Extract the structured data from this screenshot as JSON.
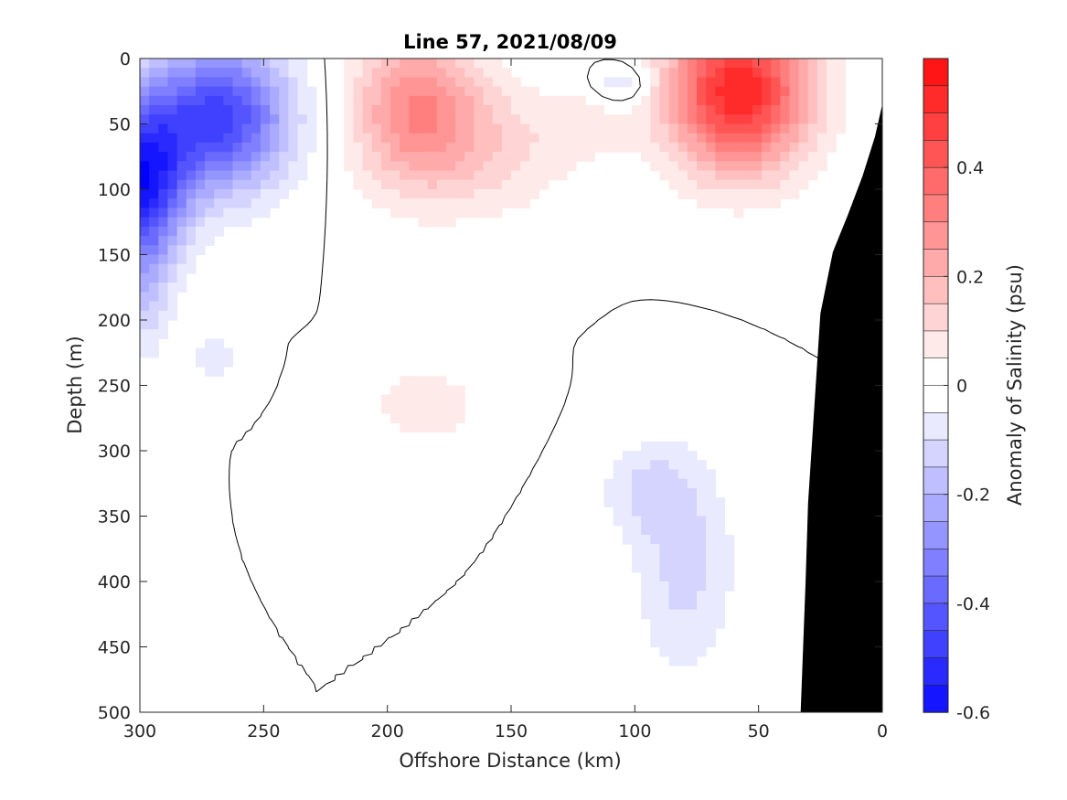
{
  "chart_data": {
    "type": "heatmap",
    "title": "Line 57, 2021/08/09",
    "xlabel": "Offshore Distance (km)",
    "ylabel": "Depth (m)",
    "colorbar_label": "Anomaly of Salinity (psu)",
    "xlim": [
      300,
      0
    ],
    "ylim": [
      0,
      500
    ],
    "x_reversed": true,
    "y_reversed": true,
    "x_ticks": [
      "300",
      "250",
      "200",
      "150",
      "100",
      "50",
      "0"
    ],
    "y_ticks": [
      "0",
      "50",
      "100",
      "150",
      "200",
      "250",
      "300",
      "350",
      "400",
      "450",
      "500"
    ],
    "colorbar_range": [
      -0.6,
      0.6
    ],
    "colorbar_ticks": [
      "0.4",
      "0.2",
      "0",
      "-0.2",
      "-0.4",
      "-0.6"
    ],
    "colorbar_tick_values": [
      0.4,
      0.2,
      0,
      -0.2,
      -0.4,
      -0.6
    ],
    "contour_step": 0.05,
    "colors": {
      "positive_max": "#ff0000",
      "negative_max": "#0000ff",
      "zero": "#ffffff",
      "bathymetry": "#000000"
    },
    "features": [
      {
        "sign": -1,
        "amp": 0.48,
        "x": 268,
        "y": 45,
        "sx": 28,
        "sy": 55
      },
      {
        "sign": -1,
        "amp": 0.55,
        "x": 300,
        "y": 95,
        "sx": 18,
        "sy": 60
      },
      {
        "sign": -1,
        "amp": 0.12,
        "x": 298,
        "y": 180,
        "sx": 10,
        "sy": 50
      },
      {
        "sign": -1,
        "amp": 0.09,
        "x": 270,
        "y": 230,
        "sx": 10,
        "sy": 18
      },
      {
        "sign": -1,
        "amp": 0.12,
        "x": 105,
        "y": 20,
        "sx": 12,
        "sy": 15
      },
      {
        "sign": -1,
        "amp": 0.12,
        "x": 80,
        "y": 390,
        "sx": 20,
        "sy": 80
      },
      {
        "sign": -1,
        "amp": 0.1,
        "x": 95,
        "y": 330,
        "sx": 18,
        "sy": 35
      },
      {
        "sign": 1,
        "amp": 0.3,
        "x": 188,
        "y": 40,
        "sx": 26,
        "sy": 60
      },
      {
        "sign": 1,
        "amp": 0.1,
        "x": 155,
        "y": 70,
        "sx": 30,
        "sy": 50
      },
      {
        "sign": 1,
        "amp": 0.55,
        "x": 58,
        "y": 25,
        "sx": 28,
        "sy": 60
      },
      {
        "sign": 1,
        "amp": 0.09,
        "x": 185,
        "y": 265,
        "sx": 22,
        "sy": 30
      },
      {
        "sign": 1,
        "amp": 0.06,
        "x": 118,
        "y": 50,
        "sx": 20,
        "sy": 30
      }
    ],
    "bathymetry": [
      [
        33,
        500
      ],
      [
        31,
        400
      ],
      [
        30,
        340
      ],
      [
        25,
        195
      ],
      [
        20,
        148
      ],
      [
        14,
        120
      ],
      [
        8,
        90
      ],
      [
        3,
        60
      ],
      [
        0,
        35
      ],
      [
        0,
        500
      ]
    ]
  }
}
